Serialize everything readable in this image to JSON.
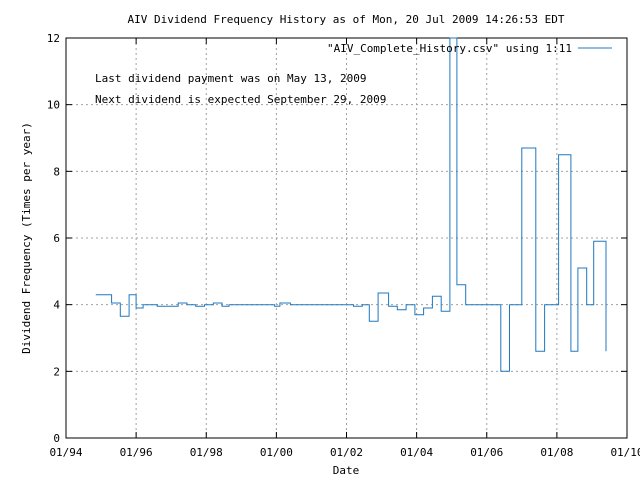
{
  "chart_data": {
    "type": "line",
    "title": "AIV Dividend Frequency History as of Mon, 20 Jul 2009 14:26:53 EDT",
    "xlabel": "Date",
    "ylabel": "Dividend Frequency (Times per year)",
    "legend_position": "top-right",
    "grid": true,
    "line_style": "step",
    "xlim": [
      1994.0,
      2010.0
    ],
    "ylim": [
      0,
      12
    ],
    "x_ticks": [
      1994,
      1996,
      1998,
      2000,
      2002,
      2004,
      2006,
      2008,
      2010
    ],
    "x_tick_labels": [
      "01/94",
      "01/96",
      "01/98",
      "01/00",
      "01/02",
      "01/04",
      "01/06",
      "01/08",
      "01/10"
    ],
    "y_ticks": [
      0,
      2,
      4,
      6,
      8,
      10,
      12
    ],
    "y_tick_labels": [
      "0",
      "2",
      "4",
      "6",
      "8",
      "10",
      "12"
    ],
    "annotations": [
      "Last dividend payment was on May 13, 2009",
      "Next dividend is expected September 29, 2009"
    ],
    "colors": {
      "series": "#1f78c1",
      "grid": "#a0a0a0",
      "axes": "#000000"
    },
    "series": [
      {
        "name": "\"AIV_Complete_History.csv\" using 1:11",
        "x": [
          1994.85,
          1995.3,
          1995.55,
          1995.8,
          1996.0,
          1996.2,
          1996.4,
          1996.6,
          1996.85,
          1997.2,
          1997.45,
          1997.7,
          1997.95,
          1998.2,
          1998.45,
          1998.65,
          1998.9,
          1999.2,
          1999.45,
          1999.7,
          1999.95,
          2000.1,
          2000.4,
          2000.65,
          2000.95,
          2001.2,
          2001.45,
          2001.7,
          2001.95,
          2002.2,
          2002.45,
          2002.65,
          2002.9,
          2003.2,
          2003.45,
          2003.7,
          2003.95,
          2004.2,
          2004.45,
          2004.7,
          2004.95,
          2005.15,
          2005.4,
          2005.65,
          2006.0,
          2006.4,
          2006.65,
          2007.0,
          2007.4,
          2007.65,
          2008.05,
          2008.4,
          2008.6,
          2008.85,
          2009.05,
          2009.4
        ],
        "y": [
          4.3,
          4.05,
          3.65,
          4.3,
          3.9,
          4.0,
          4.0,
          3.95,
          3.95,
          4.05,
          4.0,
          3.95,
          4.0,
          4.05,
          3.95,
          4.0,
          4.0,
          4.0,
          4.0,
          4.0,
          3.95,
          4.05,
          4.0,
          4.0,
          4.0,
          4.0,
          4.0,
          4.0,
          4.0,
          3.95,
          4.0,
          3.5,
          4.35,
          3.95,
          3.85,
          4.0,
          3.7,
          3.9,
          4.25,
          3.8,
          12.0,
          4.6,
          4.0,
          4.0,
          4.0,
          2.0,
          4.0,
          8.7,
          2.6,
          4.0,
          8.5,
          2.6,
          5.1,
          4.0,
          5.9,
          2.6
        ]
      }
    ]
  }
}
